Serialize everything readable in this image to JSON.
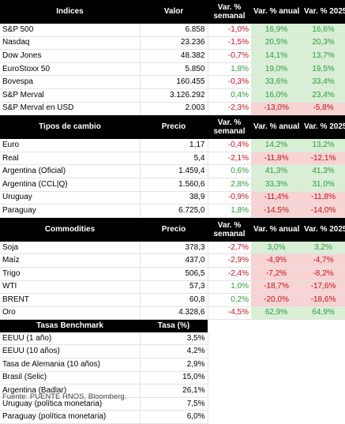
{
  "indices": {
    "headers": [
      "Indices",
      "Valor",
      "Var. %\nsemanal",
      "Var. % anual",
      "Var. % 2025"
    ],
    "rows": [
      {
        "name": "S&P 500",
        "value": "6.858",
        "weekly": "-1,0%",
        "annual": "16,9%",
        "ytd": "16,6%"
      },
      {
        "name": "Nasdaq",
        "value": "23.236",
        "weekly": "-1,5%",
        "annual": "20,5%",
        "ytd": "20,3%"
      },
      {
        "name": "Dow Jones",
        "value": "48.382",
        "weekly": "-0,7%",
        "annual": "14,1%",
        "ytd": "13,7%"
      },
      {
        "name": "EuroStoxx 50",
        "value": "5.850",
        "weekly": "1,8%",
        "annual": "19,0%",
        "ytd": "19,5%"
      },
      {
        "name": "Bovespa",
        "value": "160.455",
        "weekly": "-0,3%",
        "annual": "33,6%",
        "ytd": "33,4%"
      },
      {
        "name": "S&P Merval",
        "value": "3.126.292",
        "weekly": "0,4%",
        "annual": "16,0%",
        "ytd": "23,4%"
      },
      {
        "name": "S&P Merval en USD",
        "value": "2.003",
        "weekly": "-2,3%",
        "annual": "-13,0%",
        "ytd": "-5,8%"
      }
    ]
  },
  "fx": {
    "headers": [
      "Tipos de cambio",
      "Precio",
      "Var. %\nsemanal",
      "Var. % anual",
      "Var. % 2025"
    ],
    "rows": [
      {
        "name": "Euro",
        "value": "1,17",
        "weekly": "-0,4%",
        "annual": "14,2%",
        "ytd": "13,2%"
      },
      {
        "name": "Real",
        "value": "5,4",
        "weekly": "-2,1%",
        "annual": "-11,8%",
        "ytd": "-12,1%"
      },
      {
        "name": "Argentina (Oficial)",
        "value": "1.459,4",
        "weekly": "0,6%",
        "annual": "41,3%",
        "ytd": "41,3%"
      },
      {
        "name": "Argentina (CCL|Q)",
        "value": "1.560,6",
        "weekly": "2,8%",
        "annual": "33,3%",
        "ytd": "31,0%"
      },
      {
        "name": "Uruguay",
        "value": "38,9",
        "weekly": "-0,9%",
        "annual": "-11,4%",
        "ytd": "-11,8%"
      },
      {
        "name": "Paraguay",
        "value": "6.725,0",
        "weekly": "1,8%",
        "annual": "-14,5%",
        "ytd": "-14,0%"
      }
    ]
  },
  "commodities": {
    "headers": [
      "Commodities",
      "Precio",
      "Var. %\nsemanal",
      "Var. % anual",
      "Var. % 2025"
    ],
    "rows": [
      {
        "name": "Soja",
        "value": "378,3",
        "weekly": "-2,7%",
        "annual": "3,0%",
        "ytd": "3,2%"
      },
      {
        "name": "Maíz",
        "value": "437,0",
        "weekly": "-2,9%",
        "annual": "-4,9%",
        "ytd": "-4,7%"
      },
      {
        "name": "Trigo",
        "value": "506,5",
        "weekly": "-2,4%",
        "annual": "-7,2%",
        "ytd": "-8,2%"
      },
      {
        "name": "WTI",
        "value": "57,3",
        "weekly": "1,0%",
        "annual": "-18,7%",
        "ytd": "-17,6%"
      },
      {
        "name": "BRENT",
        "value": "60,8",
        "weekly": "0,2%",
        "annual": "-20,0%",
        "ytd": "-18,6%"
      },
      {
        "name": "Oro",
        "value": "4.328,6",
        "weekly": "-4,5%",
        "annual": "62,9%",
        "ytd": "64,9%"
      }
    ]
  },
  "rates": {
    "headers": [
      "Tasas Benchmark",
      "Tasa (%)"
    ],
    "rows": [
      {
        "name": "EEUU (1 año)",
        "value": "3,5%"
      },
      {
        "name": "EEUU (10 años)",
        "value": "4,2%"
      },
      {
        "name": "Tasa de Alemania (10 años)",
        "value": "2,9%"
      },
      {
        "name": "Brasil (Selic)",
        "value": "15,0%"
      },
      {
        "name": "Argentina (Badlar)",
        "value": "26,1%"
      },
      {
        "name": "Uruguay (política monetaria)",
        "value": "7,5%"
      },
      {
        "name": "Paraguay (política monetaria)",
        "value": "6,0%"
      }
    ]
  },
  "source": "Fuente: PUENTE HNOS, Bloomberg.",
  "colors": {
    "positive_text": "#2e9a3c",
    "negative_text": "#c0141c",
    "positive_bg": "#d8efd6",
    "negative_bg": "#f7d3d3",
    "header_bg": "#000000"
  }
}
